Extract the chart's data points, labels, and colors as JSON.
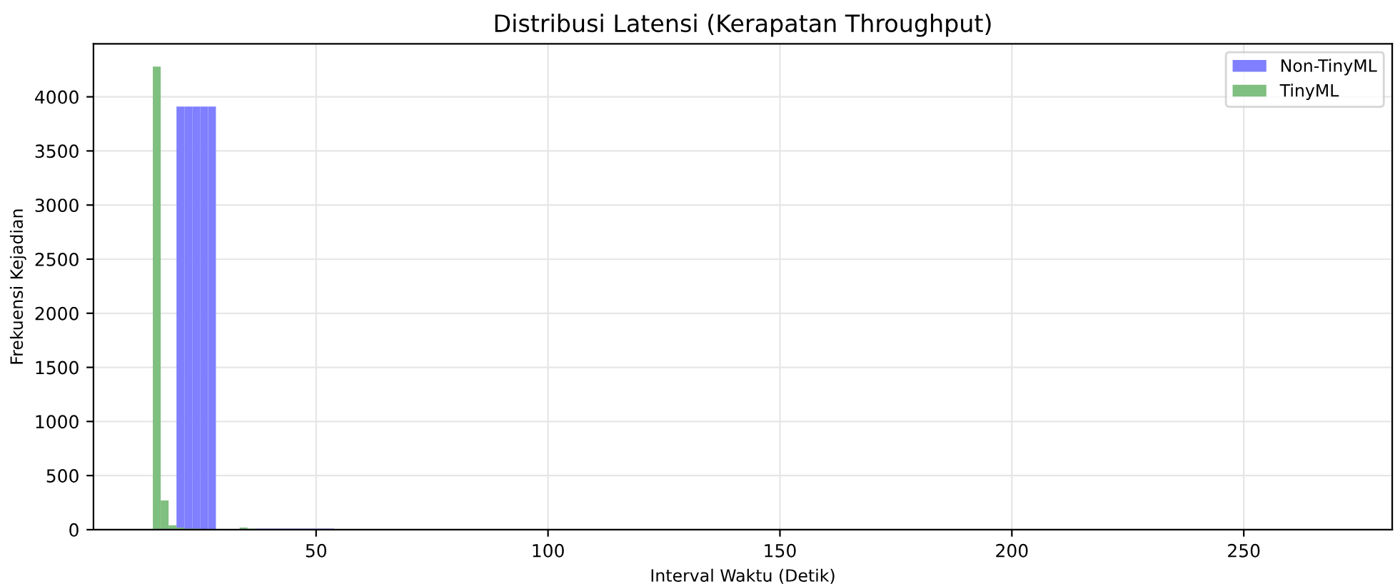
{
  "chart_data": {
    "type": "histogram",
    "title": "Distribusi Latensi (Kerapatan Throughput)",
    "xlabel": "Interval Waktu (Detik)",
    "ylabel": "Frekuensi Kejadian",
    "bins": [
      14.8,
      16.5,
      18.2,
      19.9,
      21.6,
      23.3,
      25.0,
      26.7,
      28.4,
      30.1,
      31.8,
      33.5,
      35.2,
      36.9,
      38.6,
      40.3,
      42.0,
      43.7,
      45.4,
      47.1,
      48.8,
      50.5,
      52.2,
      53.9
    ],
    "series": [
      {
        "name": "Non-TinyML",
        "color": "#7f7fff",
        "values": [
          0,
          0,
          0,
          3910,
          3910,
          3910,
          3910,
          3910,
          0,
          0,
          0,
          0,
          0,
          10,
          10,
          10,
          10,
          10,
          10,
          10,
          10,
          10,
          10
        ]
      },
      {
        "name": "TinyML",
        "color": "#7fbf7f",
        "values": [
          4280,
          270,
          40,
          20,
          10,
          10,
          0,
          0,
          0,
          0,
          0,
          20,
          10,
          0,
          0,
          0,
          0,
          0,
          0,
          0,
          0,
          0,
          0
        ]
      }
    ],
    "xlim": [
      2,
      282
    ],
    "xticks": [
      50,
      100,
      150,
      200,
      250
    ],
    "ylim": [
      0,
      4490
    ],
    "yticks": [
      0,
      500,
      1000,
      1500,
      2000,
      2500,
      3000,
      3500,
      4000
    ],
    "grid": true,
    "legend": "top right"
  }
}
